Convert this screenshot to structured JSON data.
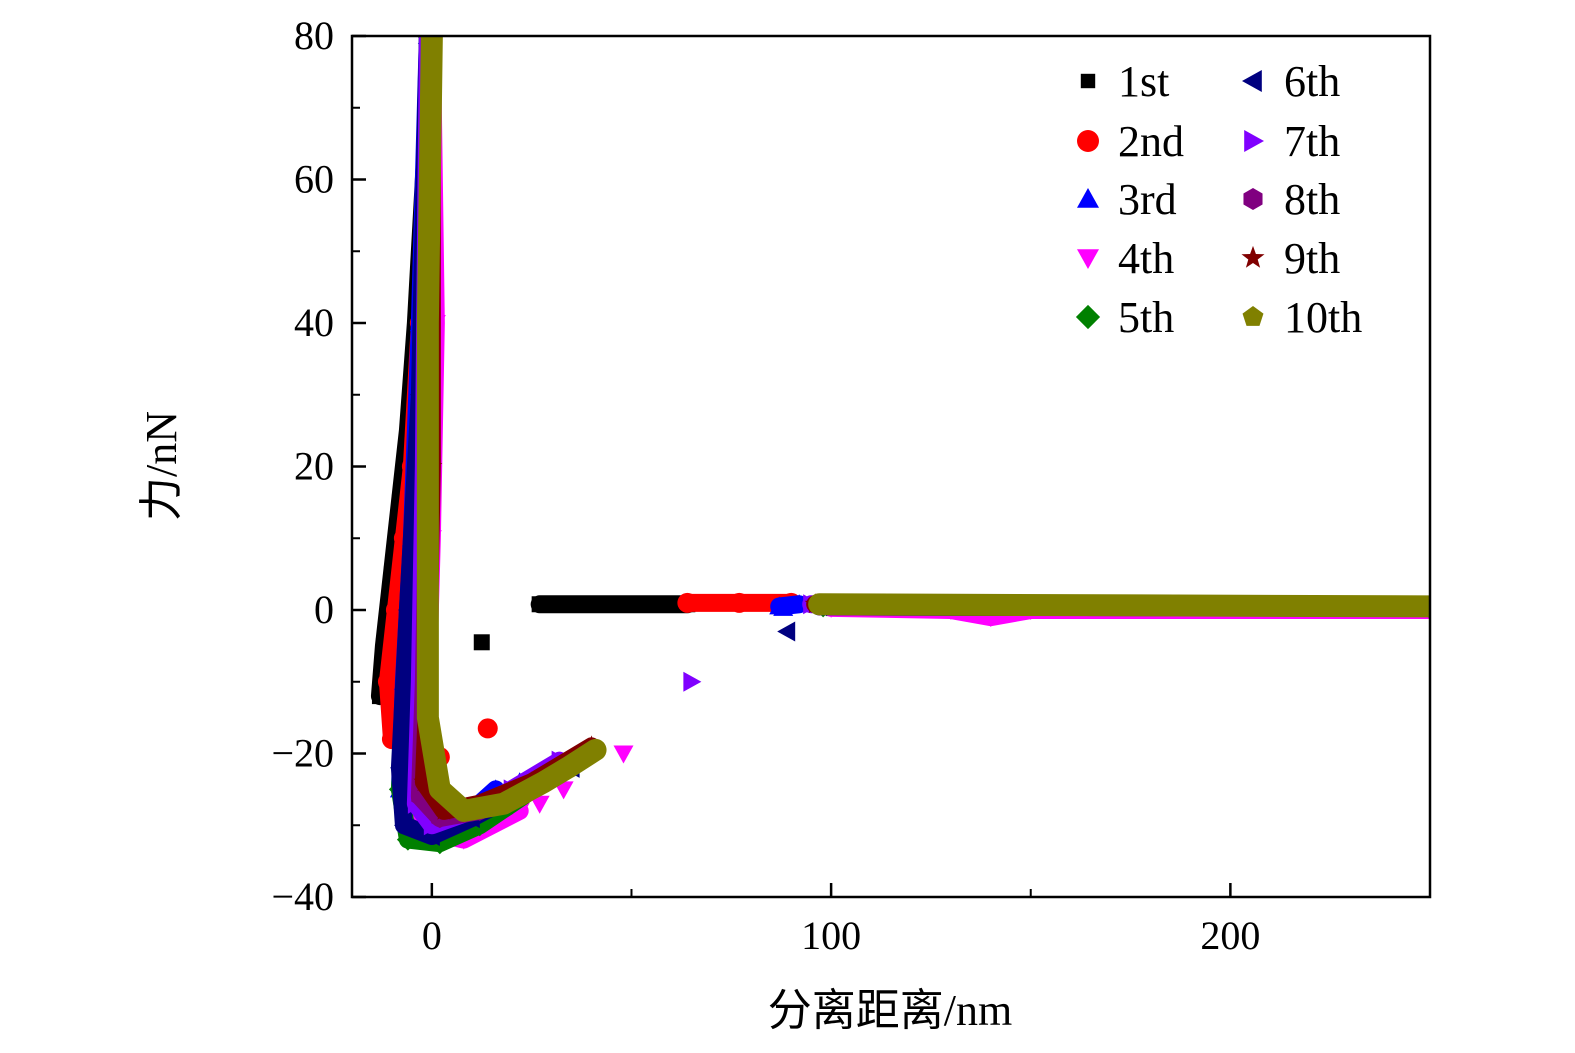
{
  "chart_data": {
    "type": "scatter",
    "title": "",
    "xlabel": "分离距离/nm",
    "ylabel": "力/nN",
    "xlim": [
      -20,
      250
    ],
    "ylim": [
      -40,
      80
    ],
    "xticks": [
      0,
      100,
      200
    ],
    "xtick_labels": [
      "0",
      "100",
      "200"
    ],
    "yticks": [
      -40,
      -20,
      0,
      20,
      40,
      60,
      80
    ],
    "ytick_labels": [
      "−40",
      "−20",
      "0",
      "20",
      "40",
      "60",
      "80"
    ],
    "grid": false,
    "legend_position": "top-right",
    "series": [
      {
        "name": "1st",
        "color": "#000000",
        "marker": "square",
        "segments": [
          [
            [
              -13,
              -12
            ],
            [
              -12,
              -5
            ],
            [
              -10,
              5
            ],
            [
              -8,
              15
            ],
            [
              -6,
              25
            ],
            [
              -4,
              40
            ],
            [
              -2,
              60
            ],
            [
              0,
              80
            ]
          ],
          [
            [
              27,
              0.8
            ],
            [
              45,
              0.8
            ],
            [
              64,
              0.8
            ]
          ]
        ],
        "points": [
          [
            12.5,
            -4.5
          ]
        ]
      },
      {
        "name": "2nd",
        "color": "#ff0000",
        "marker": "circle",
        "segments": [
          [
            [
              -10,
              -18
            ],
            [
              -11,
              -10
            ],
            [
              -9,
              0
            ],
            [
              -7,
              10
            ],
            [
              -5,
              20
            ],
            [
              -3,
              40
            ],
            [
              -1,
              60
            ],
            [
              0,
              80
            ]
          ],
          [
            [
              64,
              1
            ],
            [
              77,
              1
            ],
            [
              90,
              1
            ]
          ]
        ],
        "points": [
          [
            2,
            -20.5
          ],
          [
            14,
            -16.5
          ]
        ]
      },
      {
        "name": "3rd",
        "color": "#0000ff",
        "marker": "triangle-up",
        "segments": [
          [
            [
              -1,
              80
            ],
            [
              -3,
              40
            ],
            [
              -5,
              10
            ],
            [
              -7,
              -10
            ],
            [
              -8,
              -25
            ],
            [
              -6,
              -31
            ],
            [
              0,
              -31
            ],
            [
              8,
              -29
            ],
            [
              16,
              -25
            ]
          ],
          [
            [
              87,
              0.5
            ],
            [
              92,
              0.8
            ]
          ]
        ],
        "points": [
          [
            22,
            -24
          ],
          [
            30,
            -22
          ],
          [
            88,
            0.3
          ]
        ]
      },
      {
        "name": "4th",
        "color": "#ff00ff",
        "marker": "triangle-down",
        "segments": [
          [
            [
              0,
              80
            ],
            [
              1,
              40
            ],
            [
              0,
              10
            ],
            [
              -1,
              -10
            ],
            [
              -3,
              -28
            ],
            [
              0,
              -31
            ],
            [
              8,
              -32
            ],
            [
              15,
              -30
            ],
            [
              22,
              -28
            ]
          ],
          [
            [
              100,
              0.3
            ],
            [
              130,
              0
            ],
            [
              140,
              -1
            ],
            [
              150,
              0
            ],
            [
              250,
              0
            ]
          ]
        ],
        "points": [
          [
            27,
            -27
          ],
          [
            33,
            -25
          ],
          [
            48,
            -20
          ]
        ]
      },
      {
        "name": "5th",
        "color": "#008000",
        "marker": "diamond",
        "segments": [
          [
            [
              -1,
              80
            ],
            [
              -2,
              30
            ],
            [
              -5,
              0
            ],
            [
              -8,
              -25
            ],
            [
              -6,
              -32
            ],
            [
              2,
              -32.5
            ],
            [
              12,
              -30
            ],
            [
              20,
              -27
            ],
            [
              28,
              -24
            ]
          ],
          [
            [
              98,
              0.5
            ],
            [
              250,
              0.3
            ]
          ]
        ],
        "points": []
      },
      {
        "name": "6th",
        "color": "#000080",
        "marker": "triangle-left",
        "segments": [
          [
            [
              -1,
              80
            ],
            [
              -3,
              30
            ],
            [
              -6,
              0
            ],
            [
              -8,
              -22
            ],
            [
              -7,
              -30
            ],
            [
              0,
              -31.5
            ],
            [
              10,
              -29
            ],
            [
              20,
              -26
            ],
            [
              35,
              -22
            ]
          ],
          [
            [
              97,
              0.5
            ],
            [
              250,
              0.3
            ]
          ]
        ],
        "points": [
          [
            89,
            -3
          ]
        ]
      },
      {
        "name": "7th",
        "color": "#8000ff",
        "marker": "triangle-right",
        "segments": [
          [
            [
              -1,
              80
            ],
            [
              -2,
              20
            ],
            [
              -3,
              -10
            ],
            [
              -4,
              -27
            ],
            [
              0,
              -30
            ],
            [
              10,
              -28
            ],
            [
              20,
              -25
            ],
            [
              32,
              -21
            ]
          ],
          [
            [
              95,
              0.8
            ],
            [
              250,
              0.4
            ]
          ]
        ],
        "points": [
          [
            65,
            -10
          ]
        ]
      },
      {
        "name": "8th",
        "color": "#800080",
        "marker": "hexagon",
        "segments": [
          [
            [
              0,
              80
            ],
            [
              -1,
              20
            ],
            [
              -2,
              -10
            ],
            [
              -3,
              -26
            ],
            [
              2,
              -29
            ],
            [
              12,
              -28
            ],
            [
              25,
              -24
            ],
            [
              38,
              -20
            ]
          ],
          [
            [
              97,
              0.6
            ],
            [
              250,
              0.4
            ]
          ]
        ],
        "points": []
      },
      {
        "name": "9th",
        "color": "#800000",
        "marker": "star",
        "segments": [
          [
            [
              0,
              80
            ],
            [
              0,
              20
            ],
            [
              -1,
              -10
            ],
            [
              -2,
              -24
            ],
            [
              3,
              -28
            ],
            [
              12,
              -27
            ],
            [
              25,
              -24
            ],
            [
              40,
              -19
            ]
          ],
          [
            [
              96,
              0.8
            ],
            [
              250,
              0.5
            ]
          ]
        ],
        "points": []
      },
      {
        "name": "10th",
        "color": "#808000",
        "marker": "pentagon",
        "segments": [
          [
            [
              0,
              80
            ],
            [
              -1,
              40
            ],
            [
              -1,
              10
            ],
            [
              -1,
              -15
            ],
            [
              2,
              -25
            ],
            [
              8,
              -28
            ],
            [
              18,
              -27
            ],
            [
              28,
              -24
            ],
            [
              34,
              -22
            ],
            [
              41,
              -19.5
            ]
          ],
          [
            [
              97,
              0.8
            ],
            [
              250,
              0.5
            ]
          ]
        ],
        "points": []
      }
    ]
  }
}
